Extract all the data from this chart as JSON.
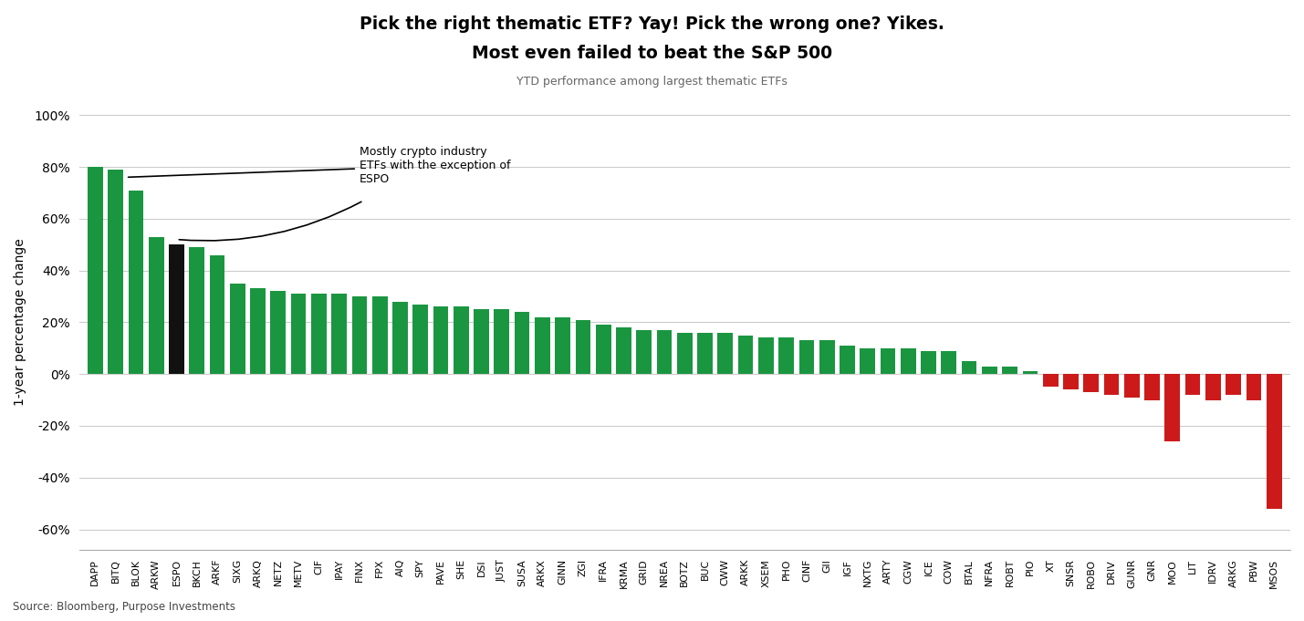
{
  "title_line1": "Pick the right thematic ETF? Yay! Pick the wrong one? Yikes.",
  "title_line2": "Most even failed to beat the S&P 500",
  "subtitle": "YTD performance among largest thematic ETFs",
  "ylabel": "1-year percentage change",
  "source": "Source: Bloomberg, Purpose Investments",
  "annotation_text": "Mostly crypto industry\nETFs with the exception of\nESPO",
  "categories": [
    "DAPP",
    "BITQ",
    "BLOK",
    "ARKW",
    "ESPO",
    "BKCH",
    "ARKF",
    "SIXG",
    "ARKQ",
    "NETZ",
    "METV",
    "CIF",
    "IPAY",
    "FINX",
    "FPX",
    "AIQ",
    "SPY",
    "PAVE",
    "SHE",
    "DSI",
    "JUST",
    "SUSA",
    "ARKX",
    "GINN",
    "ZGI",
    "IFRA",
    "KRMA",
    "GRID",
    "NREA",
    "BOTZ",
    "BUC",
    "CWW",
    "ARKK",
    "XSEM",
    "PHO",
    "CINF",
    "GII",
    "IGF",
    "NXTG",
    "ARTY",
    "CGW",
    "ICE",
    "COW",
    "BTAL",
    "NFRA",
    "ROBT",
    "PIO",
    "XT",
    "SNSR",
    "ROBO",
    "DRIV",
    "GUNR",
    "GNR",
    "MOO",
    "LIT",
    "IDRV",
    "ARKG",
    "PBW",
    "MSOS"
  ],
  "values": [
    80,
    79,
    71,
    53,
    50,
    49,
    46,
    35,
    33,
    32,
    31,
    31,
    31,
    30,
    30,
    28,
    27,
    26,
    26,
    25,
    25,
    24,
    22,
    22,
    21,
    19,
    18,
    17,
    17,
    16,
    16,
    16,
    15,
    14,
    14,
    13,
    13,
    11,
    10,
    10,
    10,
    9,
    9,
    5,
    3,
    3,
    1,
    -5,
    -6,
    -7,
    -8,
    -9,
    -10,
    -26,
    -8,
    -10,
    -8,
    -10,
    -52
  ],
  "black_bar": "ESPO",
  "green_color": "#1a9641",
  "red_color": "#cc1a1a",
  "black_color": "#111111",
  "bg_color": "#ffffff",
  "grid_color": "#cccccc",
  "ylim": [
    -68,
    108
  ],
  "yticks": [
    -60,
    -40,
    -20,
    0,
    20,
    40,
    60,
    80,
    100
  ],
  "ytick_labels": [
    "-60%",
    "-40%",
    "-20%",
    "0%",
    "20%",
    "40%",
    "60%",
    "80%",
    "100%"
  ]
}
